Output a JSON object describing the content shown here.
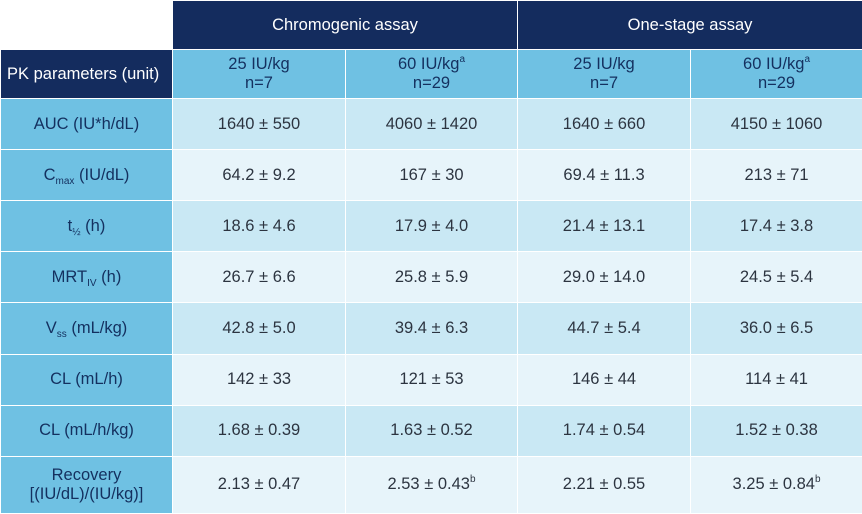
{
  "table": {
    "assays": [
      "Chromogenic assay",
      "One-stage assay"
    ],
    "param_header": "PK parameters (unit)",
    "dose_columns": [
      {
        "dose": "25 IU/kg",
        "sup": "",
        "n": "n=7"
      },
      {
        "dose": "60 IU/kg",
        "sup": "a",
        "n": "n=29"
      },
      {
        "dose": "25 IU/kg",
        "sup": "",
        "n": "n=7"
      },
      {
        "dose": "60 IU/kg",
        "sup": "a",
        "n": "n=29"
      }
    ],
    "rows": [
      {
        "label": {
          "pre": "AUC (IU*h/dL)",
          "sub": "",
          "post": ""
        },
        "cells": [
          {
            "v": "1640 ± 550",
            "sup": ""
          },
          {
            "v": "4060 ± 1420",
            "sup": ""
          },
          {
            "v": "1640 ± 660",
            "sup": ""
          },
          {
            "v": "4150 ± 1060",
            "sup": ""
          }
        ]
      },
      {
        "label": {
          "pre": "C",
          "sub": "max",
          "post": " (IU/dL)"
        },
        "cells": [
          {
            "v": "64.2 ± 9.2",
            "sup": ""
          },
          {
            "v": "167 ± 30",
            "sup": ""
          },
          {
            "v": "69.4 ± 11.3",
            "sup": ""
          },
          {
            "v": "213 ± 71",
            "sup": ""
          }
        ]
      },
      {
        "label": {
          "pre": "t",
          "sub": "½",
          "post": " (h)"
        },
        "cells": [
          {
            "v": "18.6 ± 4.6",
            "sup": ""
          },
          {
            "v": "17.9 ± 4.0",
            "sup": ""
          },
          {
            "v": "21.4 ± 13.1",
            "sup": ""
          },
          {
            "v": "17.4 ± 3.8",
            "sup": ""
          }
        ]
      },
      {
        "label": {
          "pre": "MRT",
          "sub": "IV",
          "post": " (h)"
        },
        "cells": [
          {
            "v": "26.7 ± 6.6",
            "sup": ""
          },
          {
            "v": "25.8 ± 5.9",
            "sup": ""
          },
          {
            "v": "29.0 ± 14.0",
            "sup": ""
          },
          {
            "v": "24.5 ± 5.4",
            "sup": ""
          }
        ]
      },
      {
        "label": {
          "pre": "V",
          "sub": "ss",
          "post": " (mL/kg)"
        },
        "cells": [
          {
            "v": "42.8 ± 5.0",
            "sup": ""
          },
          {
            "v": "39.4 ± 6.3",
            "sup": ""
          },
          {
            "v": "44.7 ± 5.4",
            "sup": ""
          },
          {
            "v": "36.0 ± 6.5",
            "sup": ""
          }
        ]
      },
      {
        "label": {
          "pre": "CL (mL/h)",
          "sub": "",
          "post": ""
        },
        "cells": [
          {
            "v": "142 ± 33",
            "sup": ""
          },
          {
            "v": "121 ± 53",
            "sup": ""
          },
          {
            "v": "146 ± 44",
            "sup": ""
          },
          {
            "v": "114 ± 41",
            "sup": ""
          }
        ]
      },
      {
        "label": {
          "pre": "CL (mL/h/kg)",
          "sub": "",
          "post": ""
        },
        "cells": [
          {
            "v": "1.68 ± 0.39",
            "sup": ""
          },
          {
            "v": "1.63 ± 0.52",
            "sup": ""
          },
          {
            "v": "1.74 ± 0.54",
            "sup": ""
          },
          {
            "v": "1.52 ± 0.38",
            "sup": ""
          }
        ]
      },
      {
        "label": {
          "pre": "Recovery",
          "sub": "",
          "post": "",
          "line2": "[(IU/dL)/(IU/kg)]"
        },
        "cells": [
          {
            "v": "2.13 ± 0.47",
            "sup": ""
          },
          {
            "v": "2.53 ± 0.43",
            "sup": "b"
          },
          {
            "v": "2.21 ± 0.55",
            "sup": ""
          },
          {
            "v": "3.25 ± 0.84",
            "sup": "b"
          }
        ]
      }
    ]
  }
}
